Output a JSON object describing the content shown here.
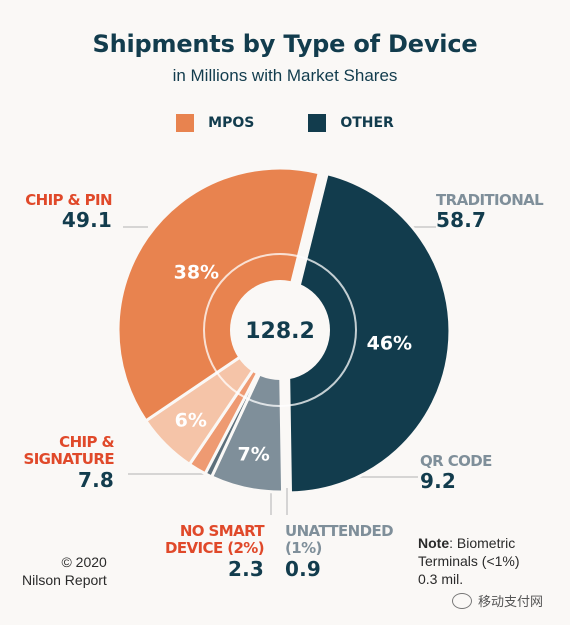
{
  "title": "Shipments by Type of Device",
  "subtitle": "in Millions with Market Shares",
  "legend": [
    {
      "label": "MPOS",
      "color": "#e8834f"
    },
    {
      "label": "OTHER",
      "color": "#123c4d"
    }
  ],
  "center_total": "128.2",
  "chart_data": {
    "type": "pie",
    "total": 128.2,
    "slices": [
      {
        "name": "TRADITIONAL",
        "value": 58.7,
        "share_label": "46%",
        "group": "OTHER",
        "color": "#123c4d",
        "exploded": true
      },
      {
        "name": "QR CODE",
        "value": 9.2,
        "share_label": "7%",
        "group": "OTHER",
        "color": "#7f8f9a",
        "exploded": false
      },
      {
        "name": "UNATTENDED (1%)",
        "value": 0.9,
        "share_label": "",
        "group": "OTHER",
        "color": "#5b6e7a",
        "exploded": false
      },
      {
        "name": "NO SMART DEVICE (2%)",
        "value": 2.3,
        "share_label": "",
        "group": "MPOS",
        "color": "#ee9a72",
        "exploded": false
      },
      {
        "name": "CHIP & SIGNATURE",
        "value": 7.8,
        "share_label": "6%",
        "group": "MPOS",
        "color": "#f5c4a8",
        "exploded": false
      },
      {
        "name": "CHIP & PIN",
        "value": 49.1,
        "share_label": "38%",
        "group": "MPOS",
        "color": "#e8834f",
        "exploded": false
      }
    ]
  },
  "labels": {
    "traditional": {
      "name": "TRADITIONAL",
      "value": "58.7"
    },
    "qr_code": {
      "name": "QR CODE",
      "value": "9.2"
    },
    "unattended": {
      "name_line1": "UNATTENDED",
      "name_line2": "(1%)",
      "value": "0.9"
    },
    "no_smart": {
      "name_line1": "NO SMART",
      "name_line2": "DEVICE (2%)",
      "value": "2.3"
    },
    "chip_sig": {
      "name_line1": "CHIP &",
      "name_line2": "SIGNATURE",
      "value": "7.8"
    },
    "chip_pin": {
      "name": "CHIP & PIN",
      "value": "49.1"
    }
  },
  "footer": {
    "line1": "© 2020",
    "line2": "Nilson Report"
  },
  "note": {
    "bold": "Note",
    "line1_rest": ": Biometric",
    "line2": "Terminals (<1%)",
    "line3": "0.3 mil."
  },
  "watermark": "移动支付网",
  "colors": {
    "orange_label": "#e0492a",
    "slate_label": "#7f8f9a",
    "navy": "#123c4d"
  }
}
